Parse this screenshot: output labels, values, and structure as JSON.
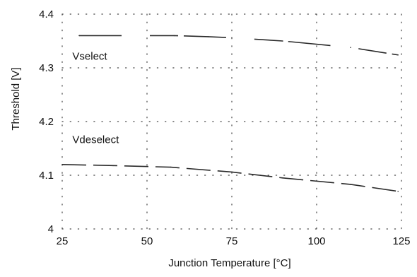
{
  "chart_data": {
    "type": "line",
    "title": "",
    "xlabel": "Junction Temperature [°C]",
    "ylabel": "Threshold [V]",
    "xlim": [
      25,
      125
    ],
    "ylim": [
      4.0,
      4.4
    ],
    "x_ticks": [
      25,
      50,
      75,
      100,
      125
    ],
    "y_ticks": [
      4,
      4.1,
      4.2,
      4.3,
      4.4
    ],
    "x_tick_labels": [
      "25",
      "50",
      "75",
      "100",
      "125"
    ],
    "y_tick_labels": [
      "4",
      "4.1",
      "4.2",
      "4.3",
      "4.4"
    ],
    "grid": "dotted",
    "series": [
      {
        "name": "Vselect",
        "x": [
          30,
          58,
          68,
          75,
          90,
          110,
          124
        ],
        "y": [
          4.36,
          4.36,
          4.358,
          4.356,
          4.35,
          4.338,
          4.324
        ]
      },
      {
        "name": "Vdeselect",
        "x": [
          25,
          40,
          57,
          75,
          90,
          110,
          124
        ],
        "y": [
          4.12,
          4.118,
          4.115,
          4.106,
          4.095,
          4.083,
          4.07
        ]
      }
    ],
    "annotations": [
      {
        "text": "Vselect",
        "x": 28,
        "y": 4.315
      },
      {
        "text": "Vdeselect",
        "x": 28,
        "y": 4.16
      }
    ]
  }
}
